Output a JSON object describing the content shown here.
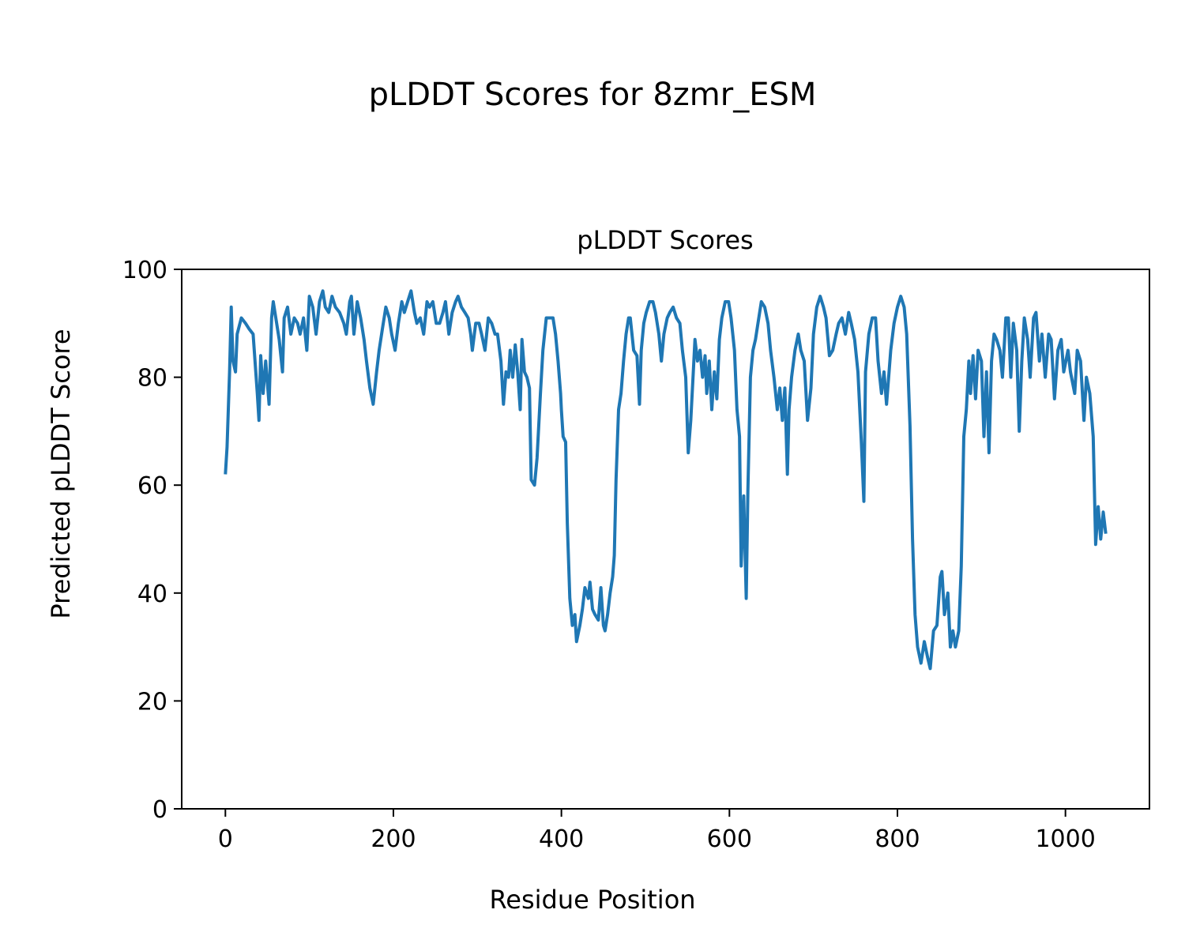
{
  "figure": {
    "suptitle": "pLDDT Scores for 8zmr_ESM"
  },
  "chart_data": {
    "type": "line",
    "title": "pLDDT Scores",
    "xlabel": "Residue Position",
    "ylabel": "Predicted pLDDT Score",
    "xlim": [
      -52,
      1100
    ],
    "ylim": [
      0,
      100
    ],
    "xticks": [
      0,
      200,
      400,
      600,
      800,
      1000
    ],
    "yticks": [
      0,
      20,
      40,
      60,
      80,
      100
    ],
    "grid": false,
    "line_color": "#1f77b4",
    "x": [
      0,
      2,
      5,
      7,
      9,
      12,
      14,
      19,
      24,
      28,
      33,
      38,
      40,
      42,
      45,
      48,
      52,
      55,
      57,
      61,
      64,
      68,
      70,
      74,
      78,
      82,
      86,
      89,
      93,
      97,
      100,
      104,
      108,
      112,
      116,
      119,
      123,
      127,
      131,
      136,
      141,
      144,
      148,
      150,
      153,
      157,
      161,
      165,
      168,
      172,
      176,
      180,
      183,
      187,
      191,
      195,
      198,
      202,
      206,
      210,
      213,
      217,
      221,
      225,
      228,
      232,
      236,
      240,
      243,
      247,
      251,
      255,
      259,
      262,
      266,
      270,
      274,
      277,
      281,
      285,
      289,
      292,
      294,
      298,
      302,
      305,
      309,
      313,
      317,
      321,
      324,
      328,
      331,
      334,
      337,
      339,
      342,
      345,
      348,
      351,
      353,
      356,
      359,
      362,
      364,
      368,
      371,
      375,
      378,
      382,
      386,
      390,
      393,
      396,
      399,
      400,
      402,
      405,
      407,
      410,
      413,
      416,
      418,
      422,
      425,
      428,
      432,
      434,
      437,
      440,
      444,
      447,
      450,
      452,
      455,
      458,
      461,
      463,
      465,
      468,
      471,
      474,
      477,
      480,
      482,
      486,
      490,
      493,
      495,
      498,
      501,
      505,
      509,
      512,
      516,
      519,
      522,
      526,
      529,
      533,
      537,
      541,
      544,
      548,
      551,
      554,
      557,
      559,
      562,
      565,
      568,
      571,
      573,
      576,
      579,
      582,
      585,
      588,
      591,
      595,
      599,
      602,
      606,
      609,
      612,
      614,
      617,
      620,
      622,
      625,
      628,
      631,
      635,
      638,
      642,
      646,
      649,
      653,
      657,
      660,
      663,
      666,
      669,
      671,
      674,
      678,
      682,
      685,
      689,
      693,
      697,
      700,
      704,
      708,
      712,
      715,
      719,
      723,
      727,
      730,
      734,
      738,
      742,
      745,
      749,
      753,
      757,
      760,
      762,
      766,
      770,
      774,
      777,
      781,
      784,
      787,
      790,
      792,
      796,
      800,
      804,
      808,
      811,
      815,
      818,
      821,
      824,
      828,
      832,
      836,
      839,
      843,
      847,
      851,
      853,
      856,
      860,
      863,
      866,
      869,
      873,
      876,
      879,
      882,
      885,
      887,
      890,
      893,
      896,
      900,
      903,
      906,
      909,
      912,
      915,
      918,
      922,
      925,
      929,
      932,
      935,
      938,
      942,
      945,
      948,
      951,
      955,
      958,
      962,
      965,
      969,
      972,
      976,
      980,
      983,
      987,
      991,
      995,
      998,
      1003,
      1006,
      1011,
      1014,
      1018,
      1022,
      1025,
      1029,
      1033,
      1036,
      1039,
      1042,
      1045,
      1048
    ],
    "y": [
      62,
      67,
      81,
      93,
      83,
      81,
      88,
      91,
      90,
      89,
      88,
      77,
      72,
      84,
      77,
      83,
      75,
      91,
      94,
      90,
      87,
      81,
      91,
      93,
      88,
      91,
      90,
      88,
      91,
      85,
      95,
      93,
      88,
      94,
      96,
      93,
      92,
      95,
      93,
      92,
      90,
      88,
      94,
      95,
      88,
      94,
      91,
      87,
      83,
      78,
      75,
      81,
      85,
      89,
      93,
      91,
      88,
      85,
      90,
      94,
      92,
      94,
      96,
      92,
      90,
      91,
      88,
      94,
      93,
      94,
      90,
      90,
      92,
      94,
      88,
      92,
      94,
      95,
      93,
      92,
      91,
      88,
      85,
      90,
      90,
      88,
      85,
      91,
      90,
      88,
      88,
      83,
      75,
      81,
      80,
      85,
      80,
      86,
      81,
      74,
      87,
      81,
      80,
      78,
      61,
      60,
      65,
      77,
      85,
      91,
      91,
      91,
      88,
      83,
      77,
      74,
      69,
      68,
      53,
      39,
      34,
      36,
      31,
      34,
      37,
      41,
      39,
      42,
      37,
      36,
      35,
      41,
      34,
      33,
      36,
      40,
      43,
      47,
      61,
      74,
      77,
      83,
      88,
      91,
      91,
      85,
      84,
      75,
      85,
      90,
      92,
      94,
      94,
      92,
      88,
      83,
      88,
      91,
      92,
      93,
      91,
      90,
      85,
      80,
      66,
      72,
      81,
      87,
      83,
      85,
      80,
      84,
      77,
      83,
      74,
      81,
      76,
      87,
      91,
      94,
      94,
      91,
      85,
      74,
      69,
      45,
      58,
      39,
      59,
      80,
      85,
      87,
      91,
      94,
      93,
      90,
      85,
      80,
      74,
      78,
      72,
      78,
      62,
      74,
      80,
      85,
      88,
      85,
      83,
      72,
      78,
      88,
      93,
      95,
      93,
      91,
      84,
      85,
      88,
      90,
      91,
      88,
      92,
      90,
      87,
      81,
      68,
      57,
      81,
      88,
      91,
      91,
      83,
      77,
      81,
      75,
      81,
      85,
      90,
      93,
      95,
      93,
      88,
      71,
      50,
      36,
      30,
      27,
      31,
      28,
      26,
      33,
      34,
      43,
      44,
      36,
      40,
      30,
      33,
      30,
      33,
      45,
      69,
      74,
      83,
      77,
      84,
      76,
      85,
      83,
      69,
      81,
      66,
      83,
      88,
      87,
      85,
      80,
      91,
      91,
      80,
      90,
      85,
      70,
      83,
      91,
      87,
      80,
      91,
      92,
      83,
      88,
      80,
      88,
      87,
      76,
      85,
      87,
      81,
      85,
      81,
      77,
      85,
      83,
      72,
      80,
      77,
      69,
      49,
      56,
      50,
      55,
      51
    ]
  }
}
